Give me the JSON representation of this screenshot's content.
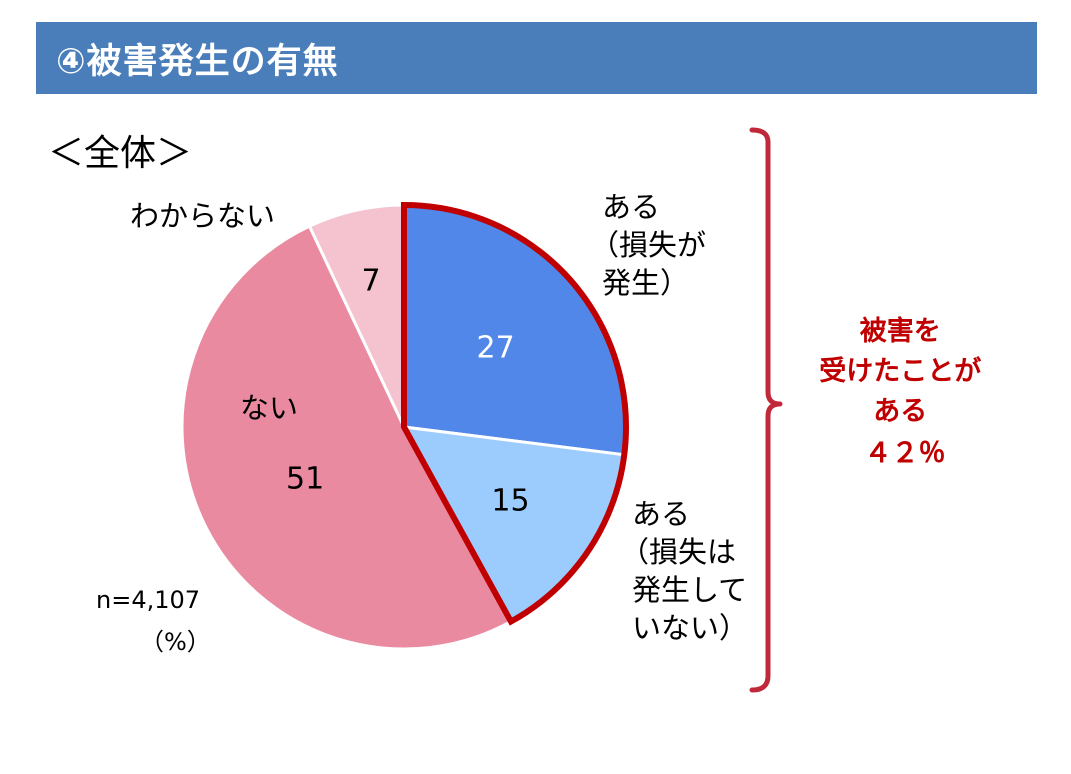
{
  "header": {
    "title": "④被害発生の有無",
    "bg_color": "#4a7ebb"
  },
  "subtitle": "＜全体＞",
  "chart_data": {
    "type": "pie",
    "start_angle_deg": 0,
    "direction": "clockwise",
    "unit": "（%）",
    "sample": "n=4,107",
    "slices": [
      {
        "value": 27,
        "value_label": "27",
        "color": "#5087e8",
        "value_color": "#ffffff",
        "label_lines": [
          "ある",
          "（損失が",
          "発生）"
        ]
      },
      {
        "value": 15,
        "value_label": "15",
        "color": "#9ccbfd",
        "value_color": "#000000",
        "label_lines": [
          "ある",
          "（損失は",
          "発生して",
          "いない）"
        ]
      },
      {
        "value": 51,
        "value_label": "51",
        "color": "#e98aa0",
        "value_color": "#000000",
        "label_lines": [
          "ない"
        ]
      },
      {
        "value": 7,
        "value_label": "7",
        "color": "#f5c2cf",
        "value_color": "#000000",
        "label_lines": [
          "わからない"
        ]
      }
    ],
    "highlight": {
      "slices": [
        0,
        1
      ],
      "outline_color": "#c00000",
      "bracket_color": "#c0293a",
      "callout_lines": [
        "被害を",
        "受けたことが",
        "ある",
        "４２％"
      ],
      "callout_color": "#c00000"
    }
  }
}
